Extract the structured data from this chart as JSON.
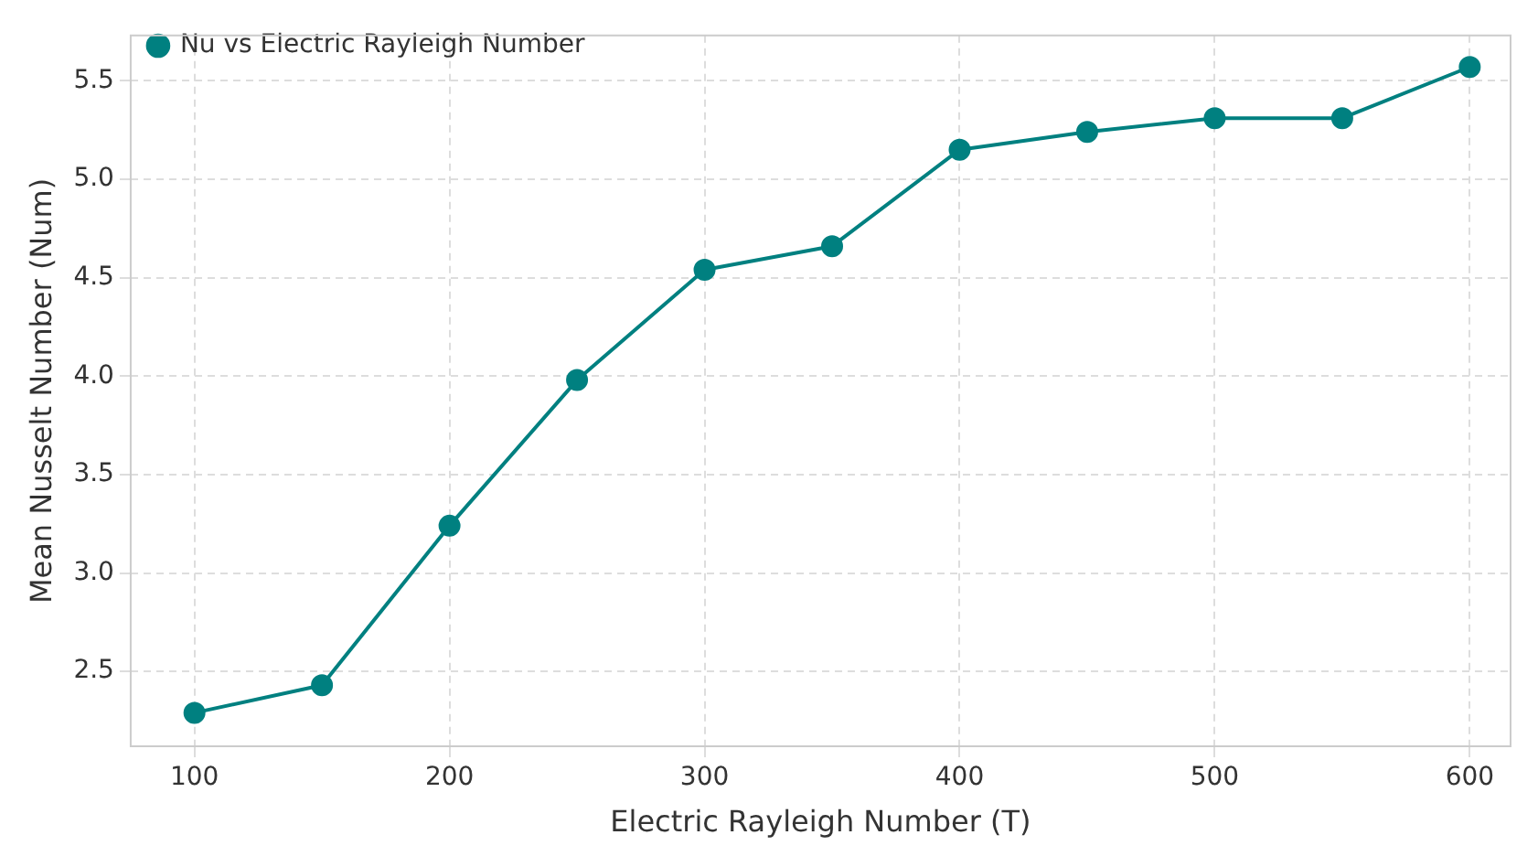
{
  "chart_data": {
    "type": "line",
    "xlabel": "Electric Rayleigh Number (T)",
    "ylabel": "Mean Nusselt Number (Num)",
    "x": [
      100,
      150,
      200,
      250,
      300,
      350,
      400,
      450,
      500,
      550,
      600
    ],
    "series": [
      {
        "name": "Nu vs Electric Rayleigh Number",
        "color": "#008080",
        "values": [
          2.29,
          2.43,
          3.24,
          3.98,
          4.54,
          4.66,
          5.15,
          5.24,
          5.31,
          5.31,
          5.57
        ]
      }
    ],
    "xlim": [
      75,
      616
    ],
    "xticks": [
      100,
      200,
      300,
      400,
      500,
      600
    ],
    "ylim": [
      2.12,
      5.73
    ],
    "yticks": [
      2.5,
      {
        "value": 3,
        "label": "3.0"
      },
      3.5,
      {
        "value": 4,
        "label": "4.0"
      },
      4.5,
      {
        "value": 5,
        "label": "5.0"
      },
      5.5
    ],
    "grid": true,
    "legend": "top left",
    "marker": "circle",
    "line_style": "solid"
  }
}
